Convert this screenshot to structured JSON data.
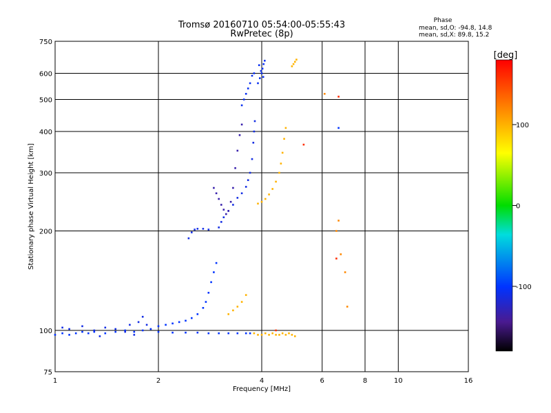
{
  "chart_data": {
    "type": "scatter",
    "title": "Tromsø 20160710 05:54:00-05:55:43",
    "subtitle": "RwPretec (8p)",
    "xlabel": "Frequency [MHz]",
    "ylabel": "Stationary phase Virtual Height [km]",
    "x_scale": "log",
    "y_scale": "log",
    "xlim": [
      1,
      16
    ],
    "ylim": [
      75,
      750
    ],
    "x_ticks": [
      1,
      2,
      4,
      6,
      8,
      10,
      16
    ],
    "x_tick_labels": [
      "1",
      "2",
      "4",
      "6",
      "8",
      "10",
      "16"
    ],
    "y_ticks": [
      75,
      100,
      200,
      300,
      400,
      500,
      600,
      750
    ],
    "y_tick_labels": [
      "75",
      "100",
      "200",
      "300",
      "400",
      "500",
      "600",
      "750"
    ],
    "grid": true,
    "stats": {
      "heading": "Phase",
      "line_o": "mean, sd,O: -94.8, 14.8",
      "line_x": "mean, sd,X:  89.8, 15.2"
    },
    "colorbar": {
      "label": "[deg]",
      "range": [
        -180,
        180
      ],
      "ticks": [
        100,
        0,
        -100
      ],
      "tick_labels": [
        "100",
        "0",
        "-100"
      ]
    },
    "traces": [
      {
        "phase": -100,
        "points": [
          [
            1.0,
            97
          ],
          [
            1.05,
            98
          ],
          [
            1.1,
            97
          ],
          [
            1.15,
            98
          ],
          [
            1.2,
            99
          ],
          [
            1.25,
            98
          ],
          [
            1.3,
            99
          ],
          [
            1.4,
            98
          ],
          [
            1.5,
            99
          ],
          [
            1.6,
            100
          ],
          [
            1.7,
            99
          ],
          [
            1.8,
            100
          ],
          [
            1.9,
            101
          ],
          [
            2.0,
            103
          ],
          [
            2.1,
            104
          ],
          [
            2.2,
            105
          ],
          [
            2.3,
            106
          ],
          [
            2.4,
            107
          ],
          [
            2.5,
            109
          ],
          [
            2.6,
            112
          ],
          [
            2.7,
            117
          ],
          [
            2.75,
            122
          ],
          [
            2.8,
            130
          ],
          [
            2.85,
            140
          ],
          [
            2.9,
            150
          ],
          [
            2.95,
            160
          ]
        ]
      },
      {
        "phase": -100,
        "points": [
          [
            2.0,
            99
          ],
          [
            2.2,
            98.5
          ],
          [
            2.4,
            98.5
          ],
          [
            2.6,
            98.5
          ],
          [
            2.8,
            98
          ],
          [
            3.0,
            98
          ],
          [
            3.2,
            98
          ],
          [
            3.4,
            98
          ],
          [
            3.6,
            98
          ],
          [
            3.7,
            98
          ]
        ]
      },
      {
        "phase": -110,
        "points": [
          [
            1.05,
            102
          ],
          [
            1.1,
            101
          ],
          [
            1.2,
            103
          ],
          [
            1.3,
            100
          ],
          [
            1.35,
            96
          ],
          [
            1.4,
            102
          ],
          [
            1.5,
            101
          ],
          [
            1.6,
            99
          ],
          [
            1.65,
            104
          ],
          [
            1.7,
            97
          ],
          [
            1.75,
            106
          ],
          [
            1.8,
            110
          ],
          [
            1.85,
            104
          ]
        ]
      },
      {
        "phase": -110,
        "points": [
          [
            2.45,
            190
          ],
          [
            2.5,
            198
          ],
          [
            2.55,
            202
          ],
          [
            2.6,
            203
          ],
          [
            2.7,
            203
          ],
          [
            2.8,
            202
          ]
        ]
      },
      {
        "phase": -110,
        "points": [
          [
            3.0,
            205
          ],
          [
            3.05,
            213
          ],
          [
            3.1,
            220
          ],
          [
            3.2,
            230
          ],
          [
            3.3,
            240
          ],
          [
            3.4,
            252
          ],
          [
            3.5,
            260
          ],
          [
            3.6,
            272
          ],
          [
            3.65,
            285
          ],
          [
            3.7,
            300
          ],
          [
            3.75,
            330
          ],
          [
            3.78,
            370
          ],
          [
            3.8,
            400
          ],
          [
            3.82,
            430
          ]
        ]
      },
      {
        "phase": -130,
        "points": [
          [
            2.9,
            270
          ],
          [
            2.95,
            260
          ],
          [
            3.0,
            250
          ],
          [
            3.05,
            240
          ],
          [
            3.1,
            232
          ],
          [
            3.15,
            225
          ],
          [
            3.2,
            230
          ],
          [
            3.25,
            245
          ],
          [
            3.3,
            270
          ],
          [
            3.35,
            310
          ],
          [
            3.4,
            350
          ],
          [
            3.45,
            390
          ],
          [
            3.5,
            420
          ]
        ]
      },
      {
        "phase": -105,
        "points": [
          [
            3.5,
            480
          ],
          [
            3.55,
            500
          ],
          [
            3.6,
            520
          ],
          [
            3.65,
            540
          ],
          [
            3.7,
            560
          ],
          [
            3.75,
            590
          ],
          [
            3.8,
            600
          ]
        ]
      },
      {
        "phase": -105,
        "points": [
          [
            3.9,
            560
          ],
          [
            3.95,
            580
          ],
          [
            4.0,
            600
          ],
          [
            4.02,
            620
          ],
          [
            4.05,
            640
          ],
          [
            4.08,
            655
          ],
          [
            3.98,
            610
          ],
          [
            4.04,
            585
          ],
          [
            3.93,
            635
          ]
        ]
      },
      {
        "phase": 100,
        "points": [
          [
            3.9,
            242
          ],
          [
            4.0,
            245
          ],
          [
            4.1,
            250
          ],
          [
            4.2,
            258
          ],
          [
            4.3,
            268
          ],
          [
            4.4,
            282
          ],
          [
            4.5,
            300
          ],
          [
            4.55,
            320
          ],
          [
            4.6,
            345
          ],
          [
            4.65,
            380
          ],
          [
            4.7,
            410
          ]
        ]
      },
      {
        "phase": 100,
        "points": [
          [
            3.2,
            112
          ],
          [
            3.3,
            115
          ],
          [
            3.4,
            118
          ],
          [
            3.5,
            122
          ],
          [
            3.6,
            128
          ]
        ]
      },
      {
        "phase": 100,
        "points": [
          [
            3.8,
            98
          ],
          [
            3.9,
            97
          ],
          [
            4.0,
            97
          ],
          [
            4.1,
            98
          ],
          [
            4.2,
            97
          ],
          [
            4.3,
            98
          ],
          [
            4.4,
            97
          ],
          [
            4.5,
            97
          ],
          [
            4.6,
            98
          ],
          [
            4.7,
            97
          ],
          [
            4.8,
            98
          ],
          [
            4.9,
            97
          ],
          [
            5.0,
            96
          ]
        ]
      },
      {
        "phase": 100,
        "points": [
          [
            4.9,
            630
          ],
          [
            4.95,
            640
          ],
          [
            5.0,
            650
          ],
          [
            5.05,
            660
          ]
        ]
      },
      {
        "phase": 120,
        "points": [
          [
            6.1,
            520
          ],
          [
            6.6,
            200
          ],
          [
            6.7,
            215
          ],
          [
            6.8,
            170
          ],
          [
            7.0,
            150
          ],
          [
            7.1,
            118
          ]
        ]
      },
      {
        "phase": 160,
        "points": [
          [
            5.3,
            365
          ],
          [
            6.7,
            510
          ],
          [
            6.6,
            165
          ],
          [
            4.4,
            100
          ]
        ]
      },
      {
        "phase": -100,
        "points": [
          [
            6.7,
            410
          ]
        ]
      }
    ]
  }
}
